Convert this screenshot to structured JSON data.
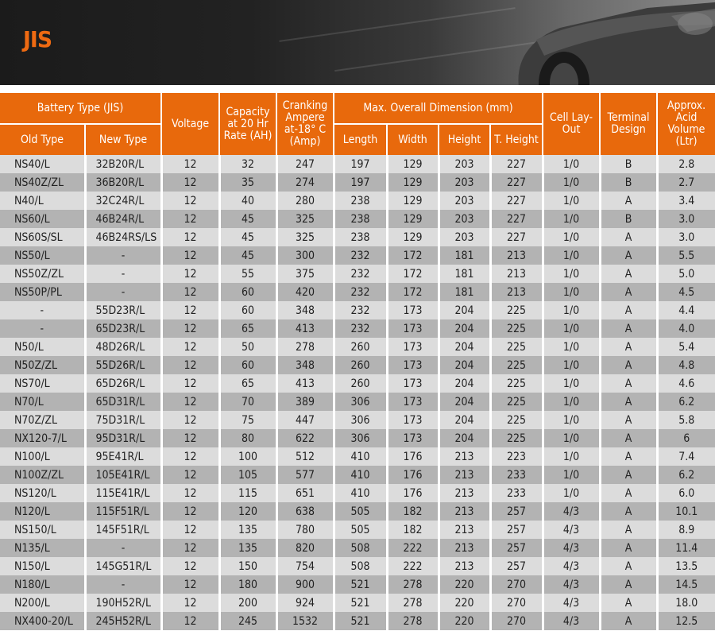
{
  "banner": {
    "logo_text": "JIS"
  },
  "table": {
    "headers": {
      "battery_type": "Battery Type (JIS)",
      "old_type": "Old Type",
      "new_type": "New Type",
      "voltage": "Voltage",
      "capacity": "Capacity at 20 Hr Rate (AH)",
      "cranking": "Cranking Ampere at-18° C (Amp)",
      "dimension": "Max. Overall Dimension (mm)",
      "length": "Length",
      "width": "Width",
      "height": "Height",
      "t_height": "T. Height",
      "cell": "Cell Lay-Out",
      "terminal": "Terminal Design",
      "acid": "Approx. Acid Volume (Ltr)"
    },
    "rows": [
      [
        "NS40/L",
        "32B20R/L",
        "12",
        "32",
        "247",
        "197",
        "129",
        "203",
        "227",
        "1/0",
        "B",
        "2.8"
      ],
      [
        "NS40Z/ZL",
        "36B20R/L",
        "12",
        "35",
        "274",
        "197",
        "129",
        "203",
        "227",
        "1/0",
        "B",
        "2.7"
      ],
      [
        "N40/L",
        "32C24R/L",
        "12",
        "40",
        "280",
        "238",
        "129",
        "203",
        "227",
        "1/0",
        "A",
        "3.4"
      ],
      [
        "NS60/L",
        "46B24R/L",
        "12",
        "45",
        "325",
        "238",
        "129",
        "203",
        "227",
        "1/0",
        "B",
        "3.0"
      ],
      [
        "NS60S/SL",
        "46B24RS/LS",
        "12",
        "45",
        "325",
        "238",
        "129",
        "203",
        "227",
        "1/0",
        "A",
        "3.0"
      ],
      [
        "NS50/L",
        "-",
        "12",
        "45",
        "300",
        "232",
        "172",
        "181",
        "213",
        "1/0",
        "A",
        "5.5"
      ],
      [
        "NS50Z/ZL",
        "-",
        "12",
        "55",
        "375",
        "232",
        "172",
        "181",
        "213",
        "1/0",
        "A",
        "5.0"
      ],
      [
        "NS50P/PL",
        "-",
        "12",
        "60",
        "420",
        "232",
        "172",
        "181",
        "213",
        "1/0",
        "A",
        "4.5"
      ],
      [
        "-",
        "55D23R/L",
        "12",
        "60",
        "348",
        "232",
        "173",
        "204",
        "225",
        "1/0",
        "A",
        "4.4"
      ],
      [
        "-",
        "65D23R/L",
        "12",
        "65",
        "413",
        "232",
        "173",
        "204",
        "225",
        "1/0",
        "A",
        "4.0"
      ],
      [
        "N50/L",
        "48D26R/L",
        "12",
        "50",
        "278",
        "260",
        "173",
        "204",
        "225",
        "1/0",
        "A",
        "5.4"
      ],
      [
        "N50Z/ZL",
        "55D26R/L",
        "12",
        "60",
        "348",
        "260",
        "173",
        "204",
        "225",
        "1/0",
        "A",
        "4.8"
      ],
      [
        "NS70/L",
        "65D26R/L",
        "12",
        "65",
        "413",
        "260",
        "173",
        "204",
        "225",
        "1/0",
        "A",
        "4.6"
      ],
      [
        "N70/L",
        "65D31R/L",
        "12",
        "70",
        "389",
        "306",
        "173",
        "204",
        "225",
        "1/0",
        "A",
        "6.2"
      ],
      [
        "N70Z/ZL",
        "75D31R/L",
        "12",
        "75",
        "447",
        "306",
        "173",
        "204",
        "225",
        "1/0",
        "A",
        "5.8"
      ],
      [
        "NX120-7/L",
        "95D31R/L",
        "12",
        "80",
        "622",
        "306",
        "173",
        "204",
        "225",
        "1/0",
        "A",
        "6"
      ],
      [
        "N100/L",
        "95E41R/L",
        "12",
        "100",
        "512",
        "410",
        "176",
        "213",
        "223",
        "1/0",
        "A",
        "7.4"
      ],
      [
        "N100Z/ZL",
        "105E41R/L",
        "12",
        "105",
        "577",
        "410",
        "176",
        "213",
        "233",
        "1/0",
        "A",
        "6.2"
      ],
      [
        "NS120/L",
        "115E41R/L",
        "12",
        "115",
        "651",
        "410",
        "176",
        "213",
        "233",
        "1/0",
        "A",
        "6.0"
      ],
      [
        "N120/L",
        "115F51R/L",
        "12",
        "120",
        "638",
        "505",
        "182",
        "213",
        "257",
        "4/3",
        "A",
        "10.1"
      ],
      [
        "NS150/L",
        "145F51R/L",
        "12",
        "135",
        "780",
        "505",
        "182",
        "213",
        "257",
        "4/3",
        "A",
        "8.9"
      ],
      [
        "N135/L",
        "-",
        "12",
        "135",
        "820",
        "508",
        "222",
        "213",
        "257",
        "4/3",
        "A",
        "11.4"
      ],
      [
        "N150/L",
        "145G51R/L",
        "12",
        "150",
        "754",
        "508",
        "222",
        "213",
        "257",
        "4/3",
        "A",
        "13.5"
      ],
      [
        "N180/L",
        "-",
        "12",
        "180",
        "900",
        "521",
        "278",
        "220",
        "270",
        "4/3",
        "A",
        "14.5"
      ],
      [
        "N200/L",
        "190H52R/L",
        "12",
        "200",
        "924",
        "521",
        "278",
        "220",
        "270",
        "4/3",
        "A",
        "18.0"
      ],
      [
        "NX400-20/L",
        "245H52R/L",
        "12",
        "245",
        "1532",
        "521",
        "278",
        "220",
        "270",
        "4/3",
        "A",
        "12.5"
      ]
    ]
  },
  "colors": {
    "accent": "#e8690c",
    "row_light": "#dcdcdc",
    "row_dark": "#b3b3b3"
  }
}
